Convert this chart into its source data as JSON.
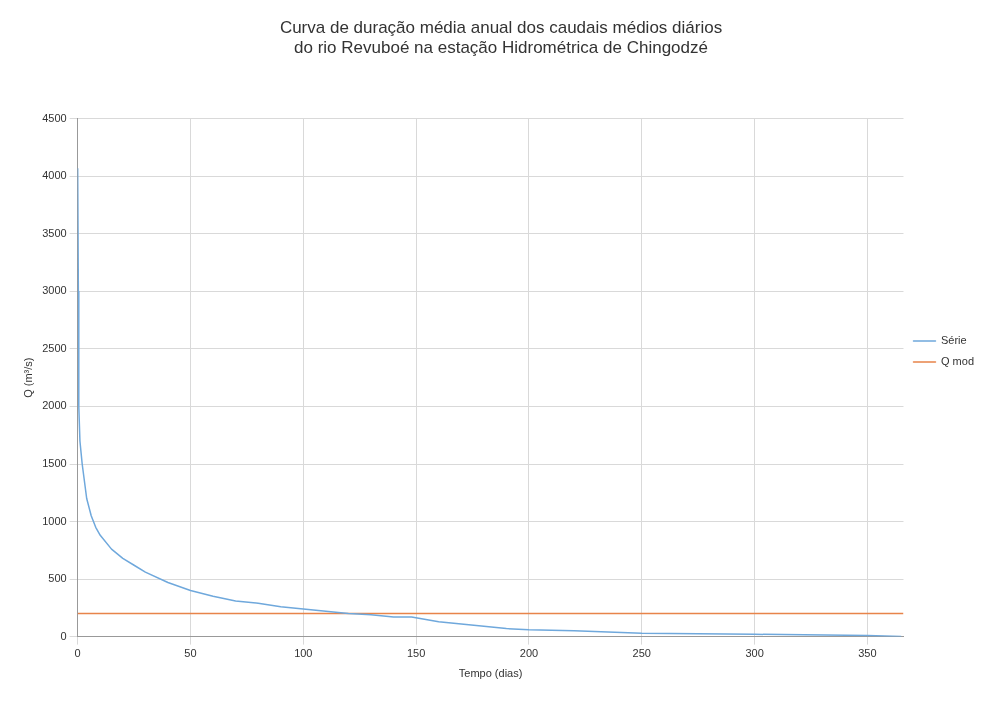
{
  "chart_data": {
    "type": "line",
    "title": [
      "Curva de duração média anual dos caudais médios diários",
      "do rio Revuboé na estação Hidrométrica de Chingodzé"
    ],
    "xlabel": "Tempo (dias)",
    "ylabel": "Q (m³/s)",
    "xlim": [
      0,
      366
    ],
    "xticks": [
      0,
      50,
      100,
      150,
      200,
      250,
      300,
      350
    ],
    "ylim": [
      0,
      4500
    ],
    "yticks": [
      0,
      500,
      1000,
      1500,
      2000,
      2500,
      3000,
      3500,
      4000,
      4500
    ],
    "grid": true,
    "legend": "right",
    "marker": "none",
    "line_style": "solid",
    "series": [
      {
        "name": "Série",
        "color": "#6fa8dc",
        "x": [
          0,
          0.3,
          0.5,
          1,
          2,
          4,
          6,
          8,
          10,
          15,
          20,
          25,
          30,
          40,
          50,
          60,
          70,
          80,
          90,
          100,
          110,
          120,
          130,
          140,
          148,
          160,
          170,
          180,
          190,
          200,
          220,
          250,
          300,
          350,
          365
        ],
        "values": [
          4070,
          3000,
          2000,
          1700,
          1500,
          1200,
          1050,
          950,
          880,
          760,
          680,
          620,
          560,
          470,
          400,
          350,
          310,
          290,
          260,
          240,
          220,
          200,
          190,
          170,
          170,
          130,
          110,
          90,
          70,
          60,
          50,
          30,
          20,
          10,
          0
        ]
      },
      {
        "name": "Q mod",
        "color": "#e8844a",
        "x": [
          0,
          366
        ],
        "values": [
          200,
          200
        ]
      }
    ]
  }
}
